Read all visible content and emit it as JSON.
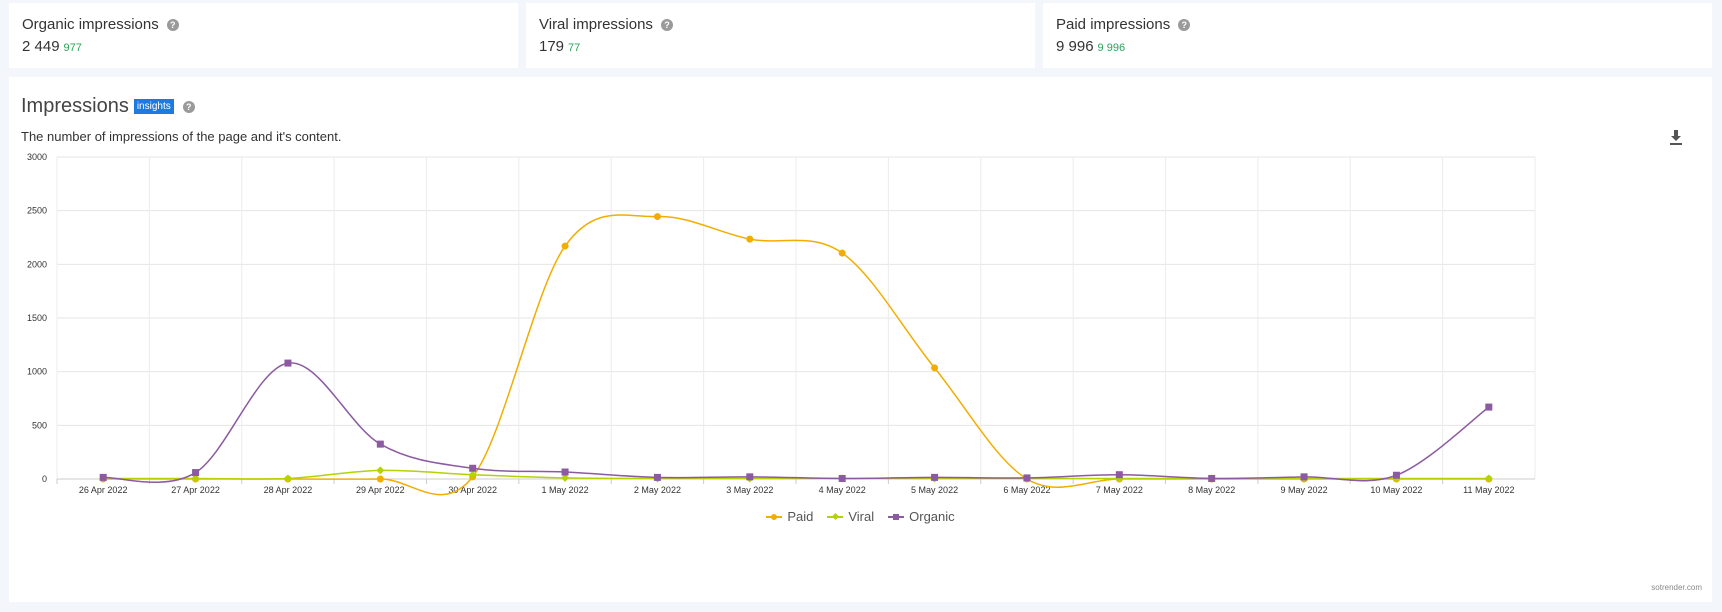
{
  "kpis": [
    {
      "title": "Organic impressions",
      "value": "2 449",
      "delta": "977"
    },
    {
      "title": "Viral impressions",
      "value": "179",
      "delta": "77"
    },
    {
      "title": "Paid impressions",
      "value": "9 996",
      "delta": "9 996"
    }
  ],
  "panel": {
    "title": "Impressions",
    "badge": "insights",
    "description": "The number of impressions of the page and it's content.",
    "credit": "sotrender.com"
  },
  "icons": {
    "help": "help-circle-icon",
    "download": "download-icon"
  },
  "chart_data": {
    "type": "line",
    "title": "",
    "xlabel": "",
    "ylabel": "",
    "ylim": [
      0,
      3000
    ],
    "yticks": [
      0,
      500,
      1000,
      1500,
      2000,
      2500,
      3000
    ],
    "grid": true,
    "legend": "bottom-center",
    "categories": [
      "26 Apr 2022",
      "27 Apr 2022",
      "28 Apr 2022",
      "29 Apr 2022",
      "30 Apr 2022",
      "1 May 2022",
      "2 May 2022",
      "3 May 2022",
      "4 May 2022",
      "5 May 2022",
      "6 May 2022",
      "7 May 2022",
      "8 May 2022",
      "9 May 2022",
      "10 May 2022",
      "11 May 2022"
    ],
    "series": [
      {
        "name": "Paid",
        "color": "#f2ae00",
        "marker": "circle",
        "values": [
          0,
          0,
          0,
          0,
          20,
          2170,
          2445,
          2235,
          2105,
          1035,
          0,
          0,
          0,
          0,
          0,
          0
        ]
      },
      {
        "name": "Viral",
        "color": "#b5d300",
        "marker": "diamond",
        "values": [
          5,
          5,
          5,
          80,
          40,
          10,
          5,
          5,
          5,
          5,
          5,
          5,
          5,
          5,
          5,
          5
        ]
      },
      {
        "name": "Organic",
        "color": "#8c5aa0",
        "marker": "square",
        "values": [
          15,
          60,
          1080,
          325,
          100,
          65,
          15,
          20,
          5,
          15,
          10,
          40,
          5,
          20,
          35,
          670
        ]
      }
    ]
  }
}
